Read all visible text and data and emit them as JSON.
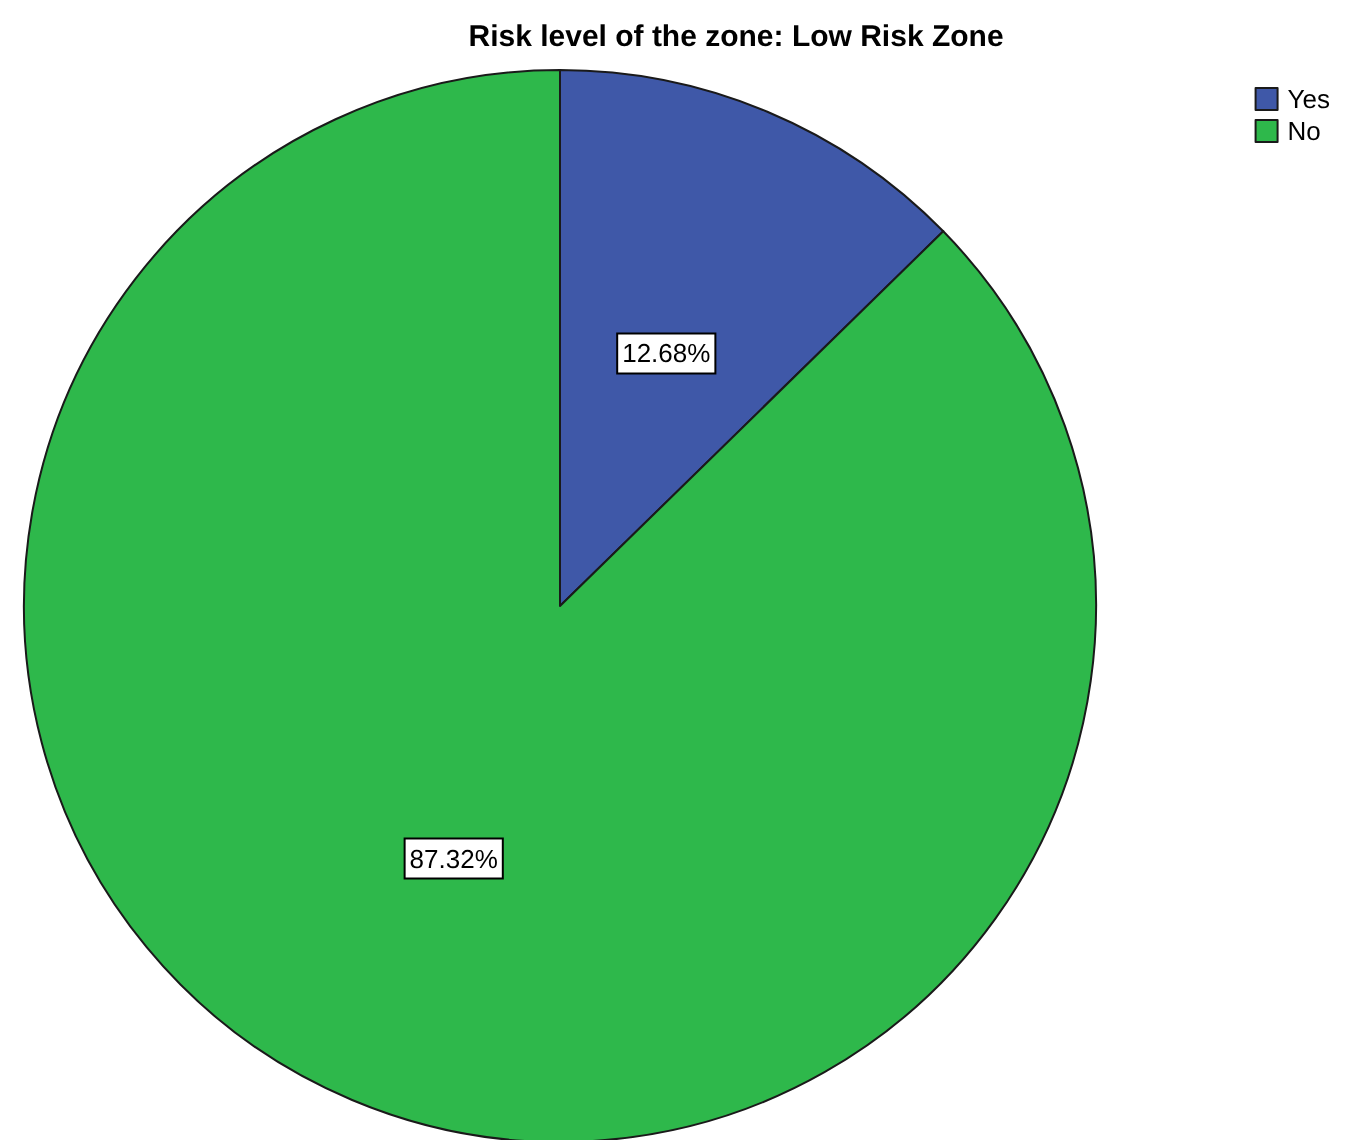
{
  "chart_data": {
    "type": "pie",
    "title": "Risk level of the zone: Low Risk Zone",
    "categories": [
      "Yes",
      "No"
    ],
    "values": [
      12.68,
      87.32
    ],
    "value_labels": [
      "12.68%",
      "87.32%"
    ],
    "colors": [
      "#3f58a8",
      "#2eb84b"
    ],
    "legend": "top right"
  }
}
